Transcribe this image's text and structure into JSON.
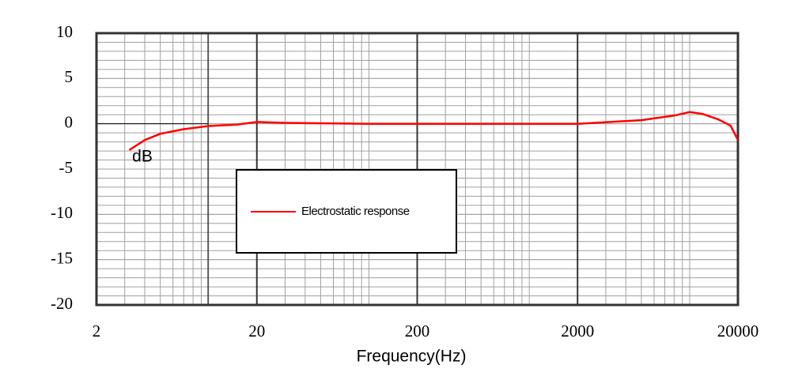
{
  "chart_data": {
    "type": "line",
    "x_label": "Frequency(Hz)",
    "y_label": "dB",
    "x_scale": "log",
    "xlim": [
      2,
      20000
    ],
    "xticks": [
      2,
      20,
      200,
      2000,
      20000
    ],
    "ylim": [
      -20,
      10
    ],
    "yticks": [
      10,
      5,
      0,
      -5,
      -10,
      -15,
      -20
    ],
    "grid": true,
    "legend_position": "center-left",
    "series": [
      {
        "name": "Electrostatic response",
        "color": "#ff0000",
        "x": [
          3.2,
          4,
          5,
          7,
          10,
          15,
          20,
          30,
          100,
          1000,
          2000,
          5000,
          8000,
          10000,
          12000,
          15000,
          18000,
          20000
        ],
        "values": [
          -2.9,
          -1.8,
          -1.1,
          -0.6,
          -0.25,
          -0.1,
          0.2,
          0.1,
          0,
          0,
          0,
          0.4,
          0.9,
          1.3,
          1.1,
          0.5,
          -0.2,
          -1.8
        ]
      }
    ]
  }
}
